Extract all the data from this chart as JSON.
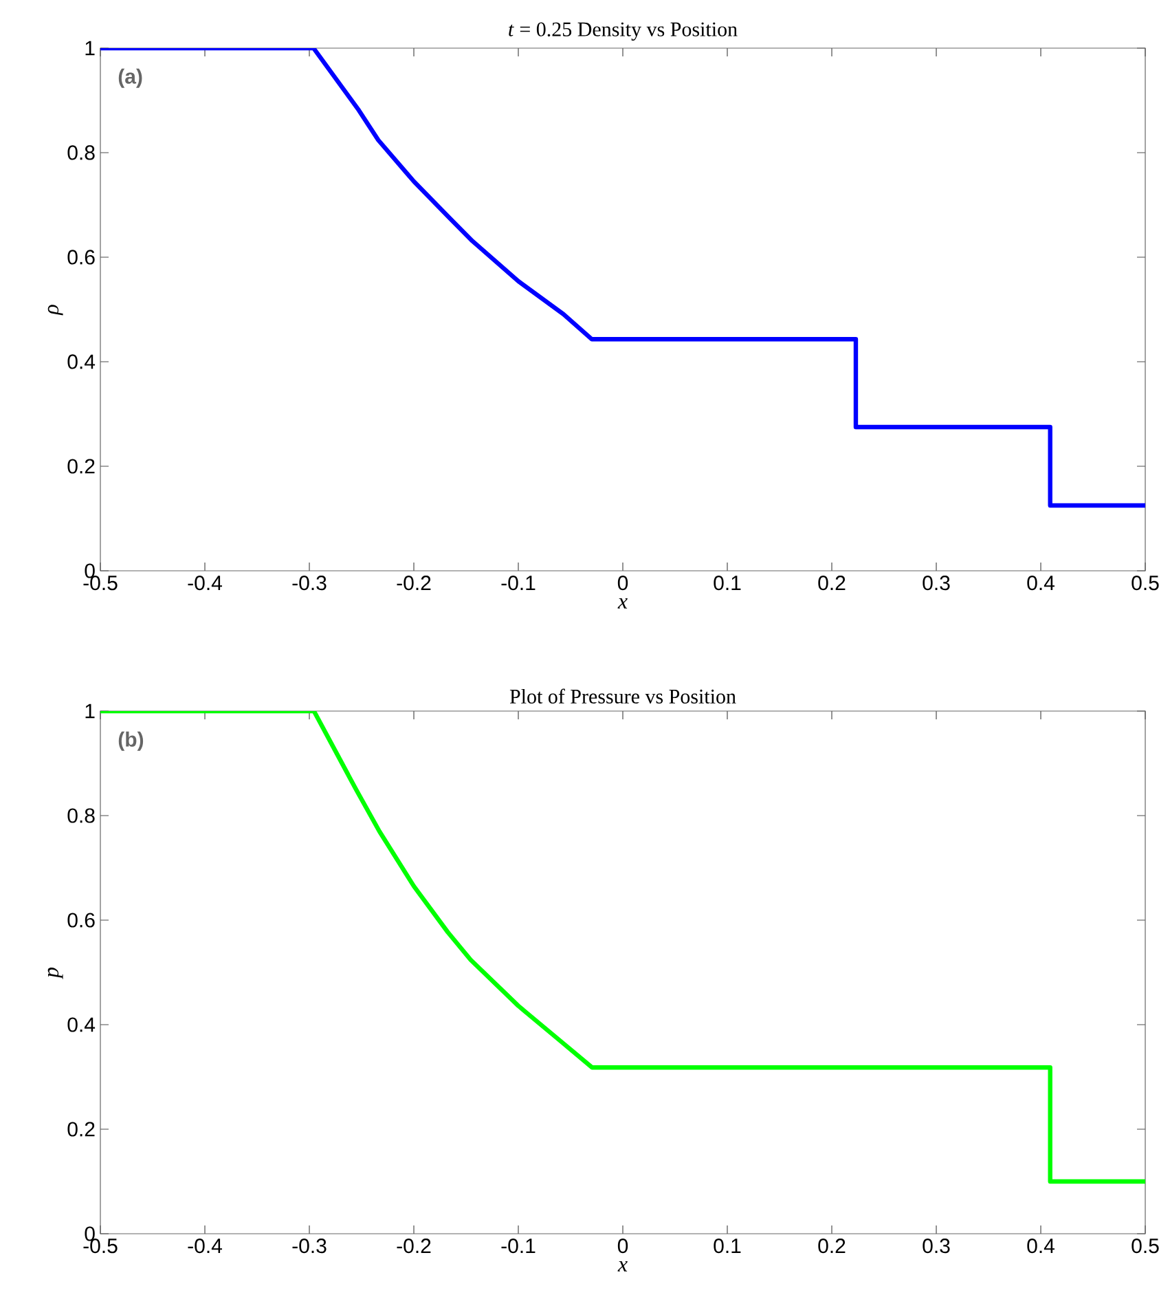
{
  "chart_data": [
    {
      "type": "line",
      "title": "*t* = 0.25 Density vs Position",
      "xlabel": "x",
      "ylabel": "ρ",
      "annotations": [
        "(a)"
      ],
      "xlim": [
        -0.5,
        0.5
      ],
      "xticks": [
        -0.5,
        -0.4,
        -0.3,
        -0.2,
        -0.1,
        0,
        0.1,
        0.2,
        0.3,
        0.4,
        0.5
      ],
      "ylim": [
        0,
        1
      ],
      "yticks": [
        0,
        0.2,
        0.4,
        0.6,
        0.8,
        1
      ],
      "series": [
        {
          "color": "#0000ff",
          "x": [
            -0.5,
            -0.296,
            -0.2526,
            -0.234,
            -0.2,
            -0.1658,
            -0.144,
            -0.1,
            -0.0568,
            -0.0296,
            0.223,
            0.223,
            0.409,
            0.409,
            0.5
          ],
          "values": [
            1,
            1,
            0.881,
            0.824,
            0.745,
            0.675,
            0.631,
            0.554,
            0.491,
            0.443,
            0.443,
            0.275,
            0.275,
            0.125,
            0.125
          ]
        }
      ]
    },
    {
      "type": "line",
      "title": "Plot of Pressure vs Position",
      "xlabel": "x",
      "ylabel": "p",
      "annotations": [
        "(b)"
      ],
      "xlim": [
        -0.5,
        0.5
      ],
      "xticks": [
        -0.5,
        -0.4,
        -0.3,
        -0.2,
        -0.1,
        0,
        0.1,
        0.2,
        0.3,
        0.4,
        0.5
      ],
      "ylim": [
        0,
        1
      ],
      "yticks": [
        0,
        0.2,
        0.4,
        0.6,
        0.8,
        1
      ],
      "series": [
        {
          "color": "#00ff00",
          "x": [
            -0.5,
            -0.2956,
            -0.255,
            -0.233,
            -0.2,
            -0.1675,
            -0.1456,
            -0.1,
            -0.058,
            -0.0294,
            0.409,
            0.409,
            0.5
          ],
          "values": [
            1,
            1,
            0.849,
            0.77,
            0.665,
            0.577,
            0.524,
            0.436,
            0.366,
            0.318,
            0.318,
            0.1,
            0.1
          ]
        }
      ]
    }
  ]
}
